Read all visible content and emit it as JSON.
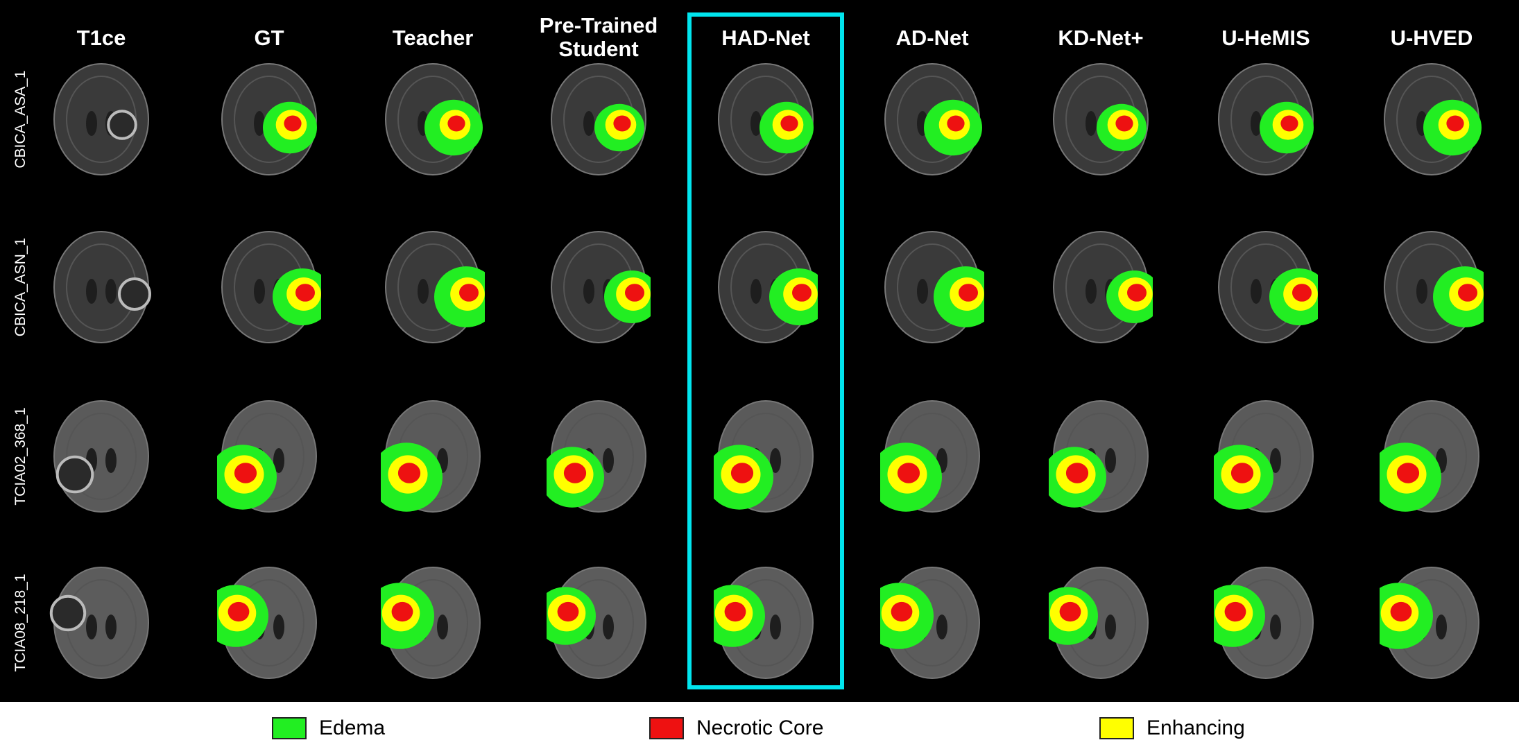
{
  "columns": [
    "T1ce",
    "GT",
    "Teacher",
    "Pre-Trained Student",
    "HAD-Net",
    "AD-Net",
    "KD-Net+",
    "U-HeMIS",
    "U-HVED"
  ],
  "highlighted_column": "HAD-Net",
  "rows": [
    "CBICA_ASA_1",
    "CBICA_ASN_1",
    "TCIA02_368_1",
    "TCIA08_218_1"
  ],
  "legend": [
    {
      "label": "Edema",
      "color": "#22ee22"
    },
    {
      "label": "Necrotic Core",
      "color": "#ee1111"
    },
    {
      "label": "Enhancing",
      "color": "#ffff00"
    }
  ],
  "colors": {
    "background": "#000000",
    "highlight": "#00e5ee",
    "edema": "#22ee22",
    "necrotic": "#ee1111",
    "enhancing": "#ffff00"
  }
}
